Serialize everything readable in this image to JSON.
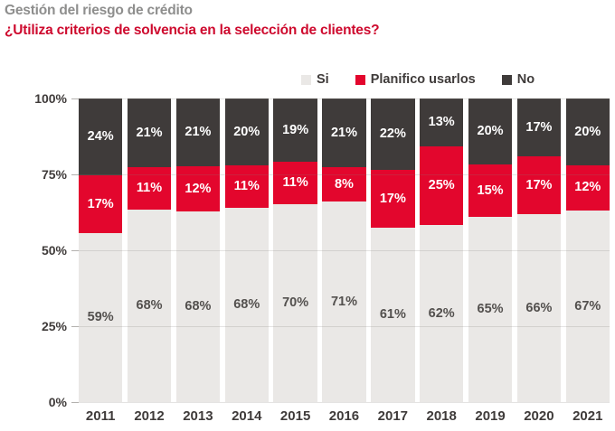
{
  "header": {
    "title": "Gestión del riesgo de crédito",
    "subtitle": "¿Utiliza criterios de solvencia en la selección de clientes?"
  },
  "colors": {
    "si": "#eae8e6",
    "planifico": "#e3062d",
    "no": "#3f3b3a",
    "title_gray": "#8e8e8d",
    "subtitle_red": "#ce0a2e",
    "axis_text": "#3f3b3a",
    "si_label_text": "#53504e",
    "segment_label_light": "#ffffff"
  },
  "chart_data": {
    "type": "bar",
    "stacked": true,
    "title": "Gestión del riesgo de crédito",
    "subtitle": "¿Utiliza criterios de solvencia en la selección de clientes?",
    "categories": [
      "2011",
      "2012",
      "2013",
      "2014",
      "2015",
      "2016",
      "2017",
      "2018",
      "2019",
      "2020",
      "2021"
    ],
    "series": [
      {
        "name": "Si",
        "color_key": "si",
        "label_color_key": "si_label_text",
        "values": [
          59,
          68,
          68,
          68,
          70,
          71,
          61,
          62,
          65,
          66,
          67
        ]
      },
      {
        "name": "Planifico usarlos",
        "color_key": "planifico",
        "label_color_key": "segment_label_light",
        "values": [
          17,
          11,
          12,
          11,
          11,
          8,
          17,
          25,
          15,
          17,
          12
        ]
      },
      {
        "name": "No",
        "color_key": "no",
        "label_color_key": "segment_label_light",
        "values": [
          24,
          21,
          21,
          20,
          19,
          21,
          22,
          13,
          20,
          17,
          20
        ]
      }
    ],
    "ytick_labels": [
      "100%",
      "75%",
      "50%",
      "25%",
      "0%"
    ],
    "ylim": [
      0,
      100
    ],
    "value_suffix": "%",
    "legend_position": "top",
    "grid": true
  }
}
